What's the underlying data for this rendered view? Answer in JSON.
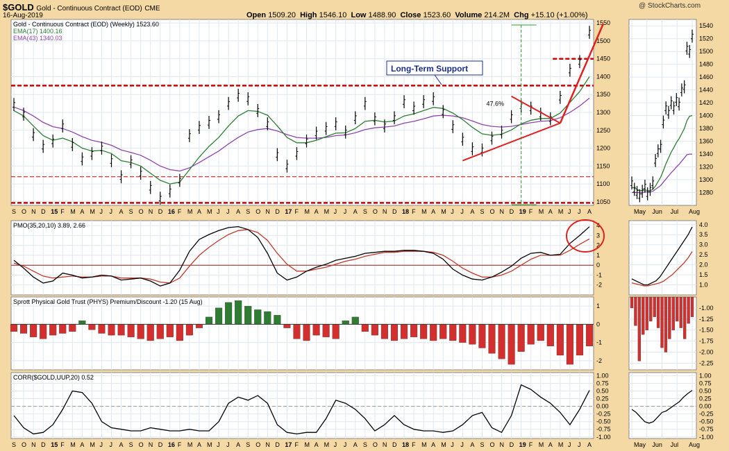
{
  "header": {
    "symbol": "$GOLD",
    "name": "Gold - Continuous Contract (EOD)",
    "exchange": "CME",
    "date": "16-Aug-2019",
    "open_label": "Open",
    "open": "1509.20",
    "high_label": "High",
    "high": "1546.10",
    "low_label": "Low",
    "low": "1488.90",
    "close_label": "Close",
    "close": "1523.60",
    "volume_label": "Volume",
    "volume": "214.2M",
    "chg_label": "Chg",
    "chg": "+15.10 (+1.00%)",
    "watermark": "@ StockCharts.com"
  },
  "chart_data": [
    {
      "type": "line",
      "panel": "price",
      "title": "Gold - Continuous Contract (EOD) (Weekly) 1523.60",
      "ylim": [
        1040,
        1560
      ],
      "y_ticks": [
        1050,
        1100,
        1150,
        1200,
        1250,
        1300,
        1350,
        1400,
        1450,
        1500,
        1550
      ],
      "x_month_labels": [
        "S",
        "O",
        "N",
        "D",
        "15",
        "F",
        "M",
        "A",
        "M",
        "J",
        "J",
        "A",
        "S",
        "O",
        "N",
        "D",
        "16",
        "F",
        "M",
        "A",
        "M",
        "J",
        "J",
        "A",
        "S",
        "O",
        "N",
        "D",
        "17",
        "F",
        "M",
        "A",
        "M",
        "J",
        "J",
        "A",
        "S",
        "O",
        "N",
        "D",
        "18",
        "F",
        "M",
        "A",
        "M",
        "J",
        "J",
        "A",
        "S",
        "O",
        "N",
        "D",
        "19",
        "F",
        "M",
        "A",
        "M",
        "J",
        "J",
        "A"
      ],
      "x_year_label_indices": [
        4,
        16,
        28,
        40,
        52
      ],
      "series": [
        {
          "name": "$GOLD",
          "color": "#000000",
          "values": [
            1322,
            1295,
            1238,
            1205,
            1220,
            1262,
            1210,
            1170,
            1185,
            1200,
            1165,
            1120,
            1162,
            1130,
            1090,
            1060,
            1080,
            1110,
            1235,
            1258,
            1272,
            1288,
            1325,
            1348,
            1338,
            1305,
            1268,
            1182,
            1150,
            1185,
            1220,
            1242,
            1255,
            1268,
            1245,
            1285,
            1325,
            1282,
            1262,
            1285,
            1330,
            1312,
            1330,
            1338,
            1302,
            1260,
            1225,
            1198,
            1195,
            1228,
            1245,
            1288,
            1318,
            1312,
            1295,
            1282,
            1342,
            1418,
            1442,
            1524
          ]
        },
        {
          "name": "EMA(17) 1400.16",
          "color": "#2e7d32",
          "values": [
            1305,
            1290,
            1262,
            1235,
            1222,
            1228,
            1218,
            1200,
            1192,
            1194,
            1185,
            1165,
            1160,
            1150,
            1130,
            1110,
            1100,
            1105,
            1140,
            1175,
            1205,
            1230,
            1262,
            1290,
            1305,
            1303,
            1292,
            1262,
            1230,
            1215,
            1215,
            1222,
            1232,
            1242,
            1243,
            1255,
            1275,
            1278,
            1273,
            1276,
            1290,
            1296,
            1305,
            1314,
            1311,
            1298,
            1280,
            1258,
            1240,
            1236,
            1239,
            1251,
            1268,
            1278,
            1283,
            1283,
            1298,
            1328,
            1358,
            1400
          ]
        },
        {
          "name": "EMA(43) 1340.03",
          "color": "#8e44ad",
          "values": [
            1315,
            1305,
            1290,
            1272,
            1260,
            1255,
            1245,
            1232,
            1222,
            1216,
            1208,
            1195,
            1188,
            1180,
            1166,
            1150,
            1140,
            1136,
            1145,
            1160,
            1176,
            1192,
            1212,
            1230,
            1245,
            1252,
            1255,
            1248,
            1238,
            1230,
            1228,
            1228,
            1230,
            1235,
            1237,
            1243,
            1252,
            1257,
            1259,
            1262,
            1270,
            1275,
            1282,
            1290,
            1292,
            1290,
            1285,
            1276,
            1266,
            1261,
            1259,
            1261,
            1266,
            1271,
            1275,
            1277,
            1285,
            1300,
            1318,
            1340
          ]
        }
      ],
      "reference_lines": [
        {
          "label": "Long-Term Support",
          "value": 1375,
          "style": "dashed",
          "color": "#cc0000"
        },
        {
          "value": 1120,
          "style": "dashed",
          "color": "#cc0000"
        },
        {
          "value": 1047,
          "style": "dashed",
          "color": "#cc0000"
        },
        {
          "value": 1450,
          "style": "dashed",
          "color": "#cc0000"
        }
      ],
      "annotations": [
        "Long-Term Support",
        "47.6%"
      ]
    },
    {
      "type": "line",
      "panel": "pmo",
      "title": "PMO(35,20,10) 3.89, 2.66",
      "ylim": [
        -3,
        4.5
      ],
      "y_ticks": [
        -2,
        -1,
        0,
        1,
        2,
        3,
        4
      ],
      "series": [
        {
          "name": "PMO",
          "color": "#000000",
          "values": [
            0.5,
            -0.3,
            -1.2,
            -1.8,
            -1.6,
            -0.8,
            -1.0,
            -1.3,
            -1.2,
            -1.0,
            -1.1,
            -1.5,
            -1.4,
            -1.3,
            -1.6,
            -2.1,
            -1.8,
            -0.5,
            1.4,
            2.6,
            3.1,
            3.5,
            3.8,
            3.9,
            3.6,
            2.8,
            1.2,
            -0.8,
            -1.5,
            -1.2,
            -0.6,
            -0.2,
            0.1,
            0.5,
            0.7,
            0.9,
            1.2,
            1.3,
            1.4,
            1.4,
            1.5,
            1.5,
            1.4,
            1.2,
            0.6,
            -0.4,
            -1.0,
            -1.4,
            -1.5,
            -1.2,
            -0.7,
            -0.1,
            0.7,
            1.2,
            1.3,
            1.0,
            1.1,
            2.2,
            3.0,
            3.89
          ]
        },
        {
          "name": "Signal",
          "color": "#c0392b",
          "values": [
            0.2,
            -0.1,
            -0.6,
            -1.1,
            -1.3,
            -1.2,
            -1.1,
            -1.2,
            -1.2,
            -1.1,
            -1.1,
            -1.3,
            -1.3,
            -1.3,
            -1.4,
            -1.7,
            -1.8,
            -1.3,
            -0.1,
            1.0,
            1.8,
            2.5,
            3.1,
            3.5,
            3.6,
            3.3,
            2.5,
            1.2,
            0.1,
            -0.6,
            -0.6,
            -0.4,
            -0.2,
            0.1,
            0.4,
            0.6,
            0.9,
            1.1,
            1.3,
            1.3,
            1.4,
            1.4,
            1.4,
            1.3,
            1.0,
            0.4,
            -0.3,
            -0.8,
            -1.2,
            -1.2,
            -1.0,
            -0.6,
            0.0,
            0.6,
            1.0,
            1.0,
            1.0,
            1.5,
            2.1,
            2.66
          ]
        }
      ],
      "annotations": [
        "circle around latest PMO"
      ]
    },
    {
      "type": "bar",
      "panel": "phys",
      "title": "Sprott Physical Gold Trust (PHYS) Premium/Discount -1.20 (15 Aug)",
      "ylim": [
        -2.5,
        1.5
      ],
      "y_ticks": [
        -2,
        -1,
        0,
        1
      ],
      "positive_color": "#2e7d32",
      "negative_color": "#d32f2f",
      "values": [
        -0.4,
        -0.5,
        -0.7,
        -0.8,
        -0.6,
        -0.5,
        -0.4,
        0.2,
        -0.3,
        -0.5,
        -0.6,
        -0.6,
        -0.7,
        -0.8,
        -0.9,
        -0.8,
        -0.7,
        -0.9,
        -0.6,
        -0.2,
        0.4,
        0.9,
        1.2,
        1.3,
        1.0,
        0.8,
        0.7,
        0.5,
        -0.2,
        -0.8,
        -0.9,
        -0.6,
        -0.7,
        -0.8,
        0.2,
        0.4,
        -0.4,
        -0.6,
        -0.8,
        -0.9,
        -0.8,
        -0.7,
        -0.8,
        -0.9,
        -0.8,
        -0.9,
        -1.0,
        -1.1,
        -1.3,
        -1.6,
        -1.9,
        -2.2,
        -1.5,
        -1.1,
        -0.9,
        -1.2,
        -1.7,
        -2.2,
        -1.7,
        -1.2
      ]
    },
    {
      "type": "line",
      "panel": "corr",
      "title": "CORR($GOLD,UUP,20) 0.52",
      "ylim": [
        -1.05,
        1.1
      ],
      "y_ticks": [
        -1.0,
        -0.75,
        -0.5,
        -0.25,
        0.0,
        0.25,
        0.5,
        0.75,
        1.0
      ],
      "series": [
        {
          "name": "CORR($GOLD,UUP,20)",
          "color": "#000000",
          "values": [
            -0.3,
            -0.7,
            -0.9,
            -0.85,
            -0.6,
            -0.1,
            0.5,
            0.45,
            0.1,
            -0.5,
            -0.7,
            -0.75,
            -0.8,
            -0.8,
            -0.7,
            -0.75,
            -0.8,
            -0.8,
            -0.75,
            -0.8,
            -0.8,
            -0.5,
            0.1,
            0.3,
            0.2,
            0.35,
            0.1,
            -0.6,
            -0.85,
            -0.9,
            -0.85,
            -0.85,
            -0.4,
            0.2,
            0.1,
            -0.1,
            -0.4,
            -0.8,
            -0.6,
            -0.3,
            -0.6,
            -0.75,
            -0.8,
            -0.8,
            -0.85,
            -0.8,
            -0.6,
            -0.3,
            -0.2,
            -0.7,
            -0.85,
            -0.3,
            0.7,
            0.55,
            0.3,
            0.1,
            -0.2,
            -0.6,
            -0.1,
            0.52
          ]
        }
      ]
    },
    {
      "type": "line",
      "panel": "price-zoom",
      "ylim": [
        1260,
        1550
      ],
      "y_ticks": [
        1280,
        1300,
        1320,
        1340,
        1360,
        1380,
        1400,
        1420,
        1440,
        1460,
        1480,
        1500,
        1520,
        1540
      ],
      "x_month_labels": [
        "May",
        "Jun",
        "Jul",
        "Aug"
      ],
      "series": [
        {
          "name": "$GOLD",
          "color": "#000000",
          "values": [
            1295,
            1285,
            1280,
            1275,
            1282,
            1290,
            1278,
            1285,
            1295,
            1330,
            1345,
            1352,
            1390,
            1412,
            1405,
            1420,
            1412,
            1425,
            1418,
            1440,
            1445,
            1505,
            1500,
            1524
          ]
        },
        {
          "name": "EMA(17)",
          "color": "#2e7d32",
          "values": [
            1288,
            1287,
            1285,
            1283,
            1283,
            1284,
            1283,
            1283,
            1285,
            1290,
            1297,
            1304,
            1314,
            1325,
            1334,
            1343,
            1350,
            1358,
            1364,
            1372,
            1380,
            1392,
            1399,
            1400
          ]
        },
        {
          "name": "EMA(43)",
          "color": "#8e44ad",
          "values": [
            1280,
            1280,
            1280,
            1280,
            1280,
            1281,
            1281,
            1281,
            1282,
            1285,
            1288,
            1291,
            1296,
            1301,
            1306,
            1311,
            1315,
            1320,
            1324,
            1329,
            1334,
            1339,
            1340,
            1340
          ]
        }
      ]
    },
    {
      "type": "line",
      "panel": "pmo-zoom",
      "ylim": [
        0.5,
        4.2
      ],
      "y_ticks": [
        1.0,
        1.5,
        2.0,
        2.5,
        3.0,
        3.5,
        4.0
      ],
      "series": [
        {
          "name": "PMO",
          "color": "#000000",
          "values": [
            1.3,
            1.2,
            1.1,
            1.0,
            1.0,
            1.1,
            1.2,
            1.4,
            1.7,
            2.0,
            2.3,
            2.6,
            2.9,
            3.2,
            3.5,
            3.89
          ]
        },
        {
          "name": "Signal",
          "color": "#c0392b",
          "values": [
            1.1,
            1.05,
            1.0,
            0.95,
            0.95,
            1.0,
            1.05,
            1.1,
            1.2,
            1.35,
            1.5,
            1.7,
            1.9,
            2.1,
            2.35,
            2.66
          ]
        }
      ]
    },
    {
      "type": "bar",
      "panel": "phys-zoom",
      "ylim": [
        -2.4,
        -0.75
      ],
      "y_ticks": [
        -1.0,
        -1.25,
        -1.5,
        -1.75,
        -2.0,
        -2.25
      ],
      "color": "#d32f2f",
      "values": [
        -1.0,
        -1.4,
        -2.2,
        -1.6,
        -1.5,
        -1.3,
        -1.2,
        -1.45,
        -1.9,
        -2.0,
        -1.7,
        -1.5,
        -1.3,
        -1.45,
        -1.7,
        -1.35,
        -1.2
      ]
    },
    {
      "type": "line",
      "panel": "corr-zoom",
      "ylim": [
        -1.05,
        1.1
      ],
      "y_ticks": [
        -1.0,
        -0.75,
        -0.5,
        -0.25,
        0.0,
        0.25,
        0.5,
        0.75,
        1.0
      ],
      "series": [
        {
          "name": "CORR",
          "color": "#000000",
          "values": [
            -0.1,
            -0.2,
            -0.35,
            -0.5,
            -0.55,
            -0.5,
            -0.35,
            -0.2,
            -0.15,
            -0.05,
            0.05,
            0.15,
            0.3,
            0.42,
            0.52
          ]
        }
      ]
    }
  ]
}
